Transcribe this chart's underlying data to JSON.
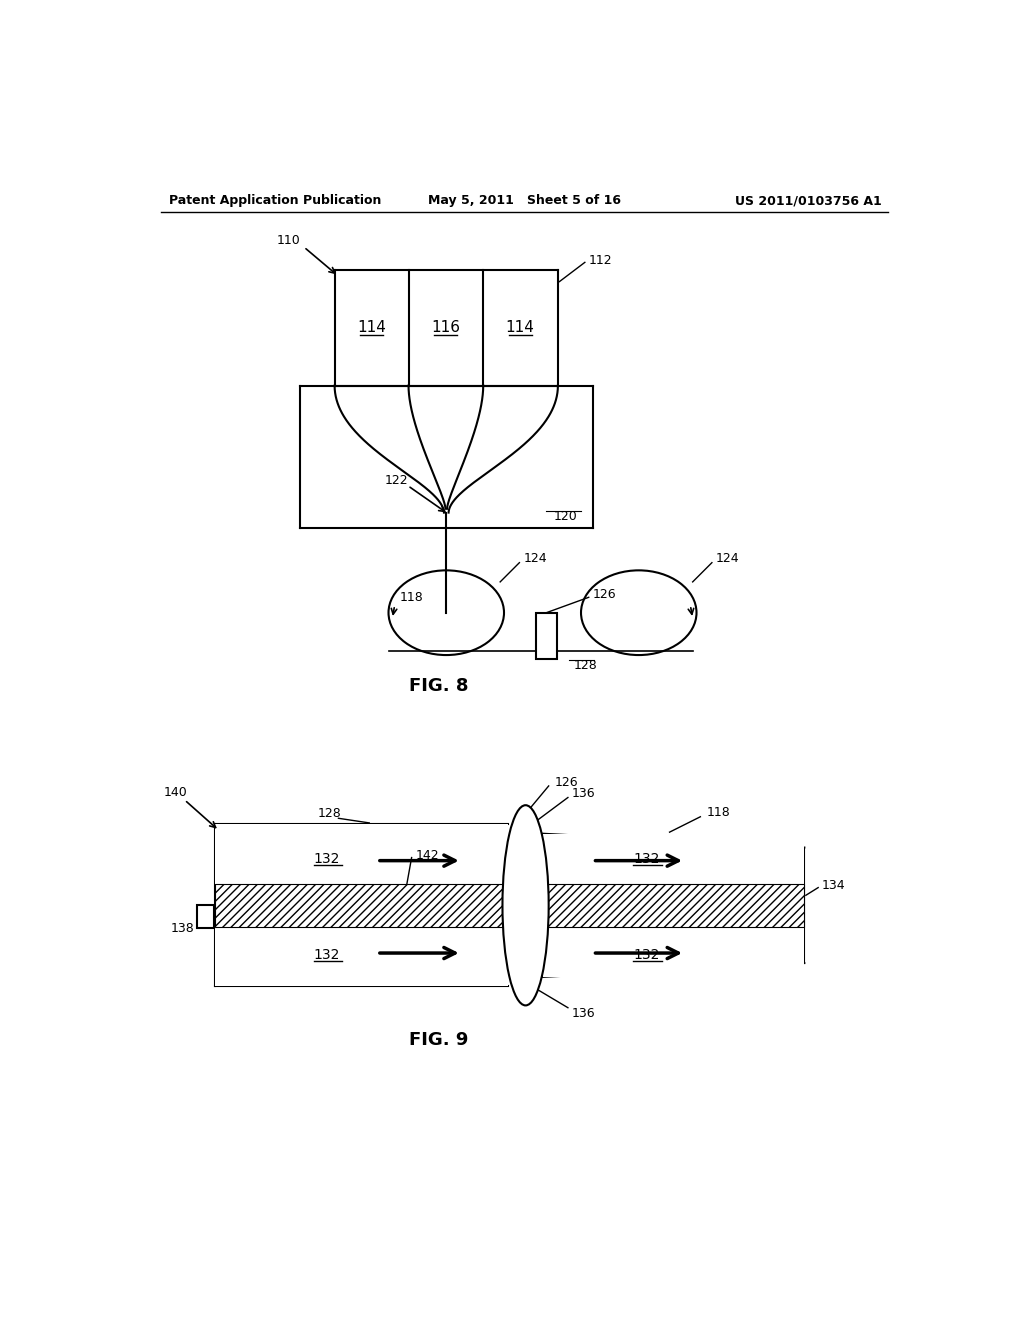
{
  "bg_color": "#ffffff",
  "line_color": "#000000",
  "header_left": "Patent Application Publication",
  "header_mid": "May 5, 2011   Sheet 5 of 16",
  "header_right": "US 2011/0103756 A1",
  "fig8_label": "FIG. 8",
  "fig9_label": "FIG. 9"
}
